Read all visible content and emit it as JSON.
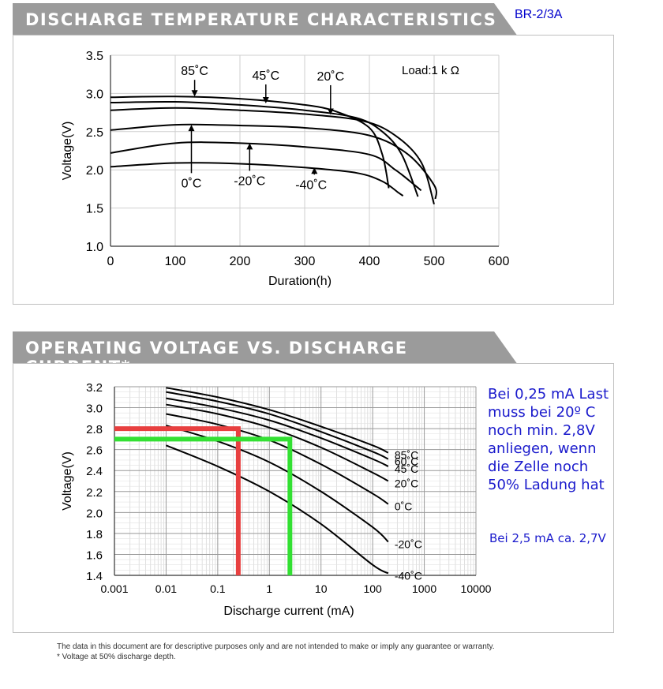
{
  "header1": {
    "title": "DISCHARGE TEMPERATURE CHARACTERISTICS",
    "model": "BR-2/3A"
  },
  "header2": {
    "title": "OPERATING VOLTAGE VS. DISCHARGE CURRENT*"
  },
  "annotations": {
    "note1": "Bei 0,25 mA Last muss bei 20º C noch min. 2,8V anliegen, wenn die Zelle noch 50% Ladung hat",
    "note2": "Bei 2,5 mA ca. 2,7V"
  },
  "footnotes": {
    "disclaimer": "The data in this document are for descriptive purposes only and are not intended to make or imply any guarantee or warranty.",
    "asterisk": "*   Voltage at 50% discharge depth."
  },
  "chart_data": [
    {
      "type": "line",
      "title": "DISCHARGE TEMPERATURE CHARACTERISTICS",
      "xlabel": "Duration(h)",
      "ylabel": "Voltage(V)",
      "xlim": [
        0,
        600
      ],
      "ylim": [
        1.0,
        3.5
      ],
      "xticks": [
        "0",
        "100",
        "200",
        "300",
        "400",
        "500",
        "600"
      ],
      "yticks": [
        "1.0",
        "1.5",
        "2.0",
        "2.5",
        "3.0",
        "3.5"
      ],
      "load_label": "Load:1 k Ω",
      "grid": true,
      "series": [
        {
          "name": "85˚C",
          "x": [
            0,
            100,
            200,
            300,
            350,
            400,
            420,
            430
          ],
          "y": [
            2.95,
            2.96,
            2.93,
            2.85,
            2.76,
            2.55,
            2.2,
            1.76
          ]
        },
        {
          "name": "45˚C",
          "x": [
            0,
            100,
            200,
            300,
            380,
            420,
            450,
            475
          ],
          "y": [
            2.88,
            2.89,
            2.85,
            2.78,
            2.68,
            2.5,
            2.2,
            1.65
          ]
        },
        {
          "name": "20˚C",
          "x": [
            0,
            100,
            200,
            300,
            390,
            440,
            480,
            500
          ],
          "y": [
            2.78,
            2.81,
            2.78,
            2.73,
            2.64,
            2.45,
            2.1,
            1.55
          ]
        },
        {
          "name": "0˚C",
          "x": [
            0,
            100,
            200,
            300,
            400,
            460,
            500,
            502
          ],
          "y": [
            2.52,
            2.59,
            2.58,
            2.55,
            2.45,
            2.2,
            1.8,
            1.62
          ]
        },
        {
          "name": "-20˚C",
          "x": [
            0,
            100,
            200,
            300,
            400,
            440,
            470,
            480
          ],
          "y": [
            2.22,
            2.35,
            2.35,
            2.3,
            2.2,
            2.0,
            1.8,
            1.73
          ]
        },
        {
          "name": "-40˚C",
          "x": [
            0,
            100,
            200,
            300,
            380,
            420,
            445,
            452
          ],
          "y": [
            2.04,
            2.09,
            2.08,
            2.03,
            1.96,
            1.85,
            1.7,
            1.66
          ]
        }
      ],
      "labels": [
        {
          "text": "85˚C",
          "x": 130,
          "y": 3.24,
          "arrow_to": [
            130,
            2.96
          ]
        },
        {
          "text": "45˚C",
          "x": 240,
          "y": 3.18,
          "arrow_to": [
            240,
            2.87
          ]
        },
        {
          "text": "20˚C",
          "x": 340,
          "y": 3.17,
          "arrow_to": [
            340,
            2.72
          ]
        },
        {
          "text": "0˚C",
          "x": 125,
          "y": 1.73,
          "arrow_to": [
            125,
            2.59
          ]
        },
        {
          "text": "-20˚C",
          "x": 215,
          "y": 1.76,
          "arrow_to": [
            215,
            2.35
          ]
        },
        {
          "text": "-40˚C",
          "x": 310,
          "y": 1.71,
          "arrow_to": [
            315,
            2.03
          ]
        }
      ]
    },
    {
      "type": "line",
      "title": "OPERATING VOLTAGE VS. DISCHARGE CURRENT*",
      "xlabel": "Discharge current (mA)",
      "ylabel": "Voltage(V)",
      "xscale": "log",
      "xlim": [
        0.001,
        10000
      ],
      "ylim": [
        1.4,
        3.2
      ],
      "xticks": [
        "0.001",
        "0.01",
        "0.1",
        "1",
        "10",
        "100",
        "1000",
        "10000"
      ],
      "yticks": [
        "1.4",
        "1.6",
        "1.8",
        "2.0",
        "2.2",
        "2.4",
        "2.6",
        "2.8",
        "3.0",
        "3.2"
      ],
      "grid": true,
      "series": [
        {
          "name": "85˚C",
          "x": [
            0.01,
            0.1,
            1,
            10,
            100,
            200
          ],
          "y": [
            3.19,
            3.1,
            2.98,
            2.82,
            2.64,
            2.57
          ]
        },
        {
          "name": "60˚C",
          "x": [
            0.01,
            0.1,
            1,
            10,
            100,
            200
          ],
          "y": [
            3.15,
            3.06,
            2.94,
            2.77,
            2.58,
            2.51
          ]
        },
        {
          "name": "45˚C",
          "x": [
            0.01,
            0.1,
            1,
            10,
            100,
            200
          ],
          "y": [
            3.09,
            3.0,
            2.88,
            2.71,
            2.51,
            2.44
          ]
        },
        {
          "name": "20˚C",
          "x": [
            0.01,
            0.1,
            1,
            10,
            100,
            200
          ],
          "y": [
            3.03,
            2.94,
            2.81,
            2.62,
            2.38,
            2.3
          ]
        },
        {
          "name": "0˚C",
          "x": [
            0.01,
            0.1,
            1,
            10,
            100,
            200
          ],
          "y": [
            2.94,
            2.84,
            2.69,
            2.46,
            2.18,
            2.08
          ]
        },
        {
          "name": "-20˚C",
          "x": [
            0.01,
            0.1,
            1,
            10,
            100,
            200
          ],
          "y": [
            2.83,
            2.68,
            2.48,
            2.2,
            1.86,
            1.72
          ]
        },
        {
          "name": "-40˚C",
          "x": [
            0.01,
            0.1,
            1,
            10,
            100,
            200
          ],
          "y": [
            2.64,
            2.44,
            2.2,
            1.89,
            1.5,
            1.42
          ]
        }
      ],
      "guides": [
        {
          "color": "#e84040",
          "x": 0.25,
          "y": 2.8
        },
        {
          "color": "#33e033",
          "x": 2.5,
          "y": 2.7
        }
      ]
    }
  ]
}
